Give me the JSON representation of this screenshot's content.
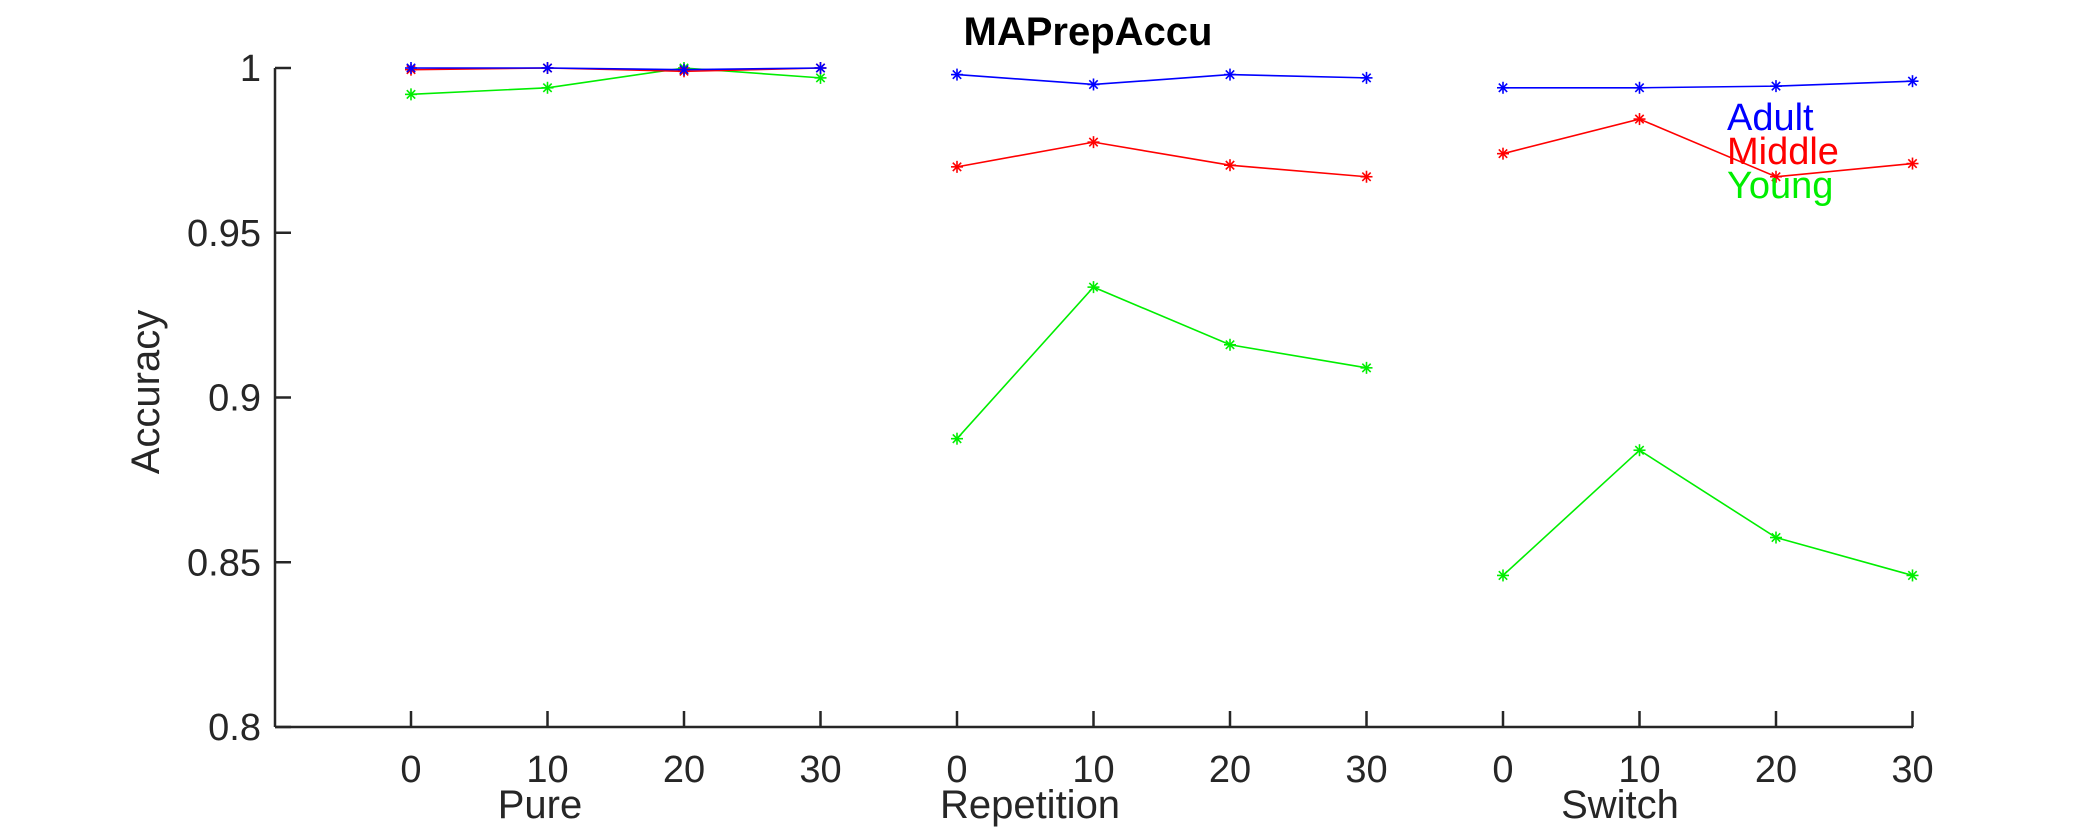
{
  "chart_data": {
    "type": "line",
    "title": "MAPrepAccu",
    "ylabel": "Accuracy",
    "xlabel": "",
    "ylim": [
      0.8,
      1.0
    ],
    "yticks": [
      0.8,
      0.85,
      0.9,
      0.95,
      1.0
    ],
    "ytick_labels": [
      "0.8",
      "0.85",
      "0.9",
      "0.95",
      "1"
    ],
    "groups": [
      "Pure",
      "Repetition",
      "Switch"
    ],
    "x": [
      0,
      10,
      20,
      30
    ],
    "xtick_labels": [
      "0",
      "10",
      "20",
      "30"
    ],
    "grid": false,
    "legend_position": "inside-right",
    "series": [
      {
        "name": "Adult",
        "color": "#0000ff",
        "values": [
          [
            1.0,
            1.0,
            0.9995,
            1.0
          ],
          [
            0.998,
            0.995,
            0.998,
            0.997
          ],
          [
            0.994,
            0.994,
            0.9945,
            0.996
          ]
        ]
      },
      {
        "name": "Middle",
        "color": "#ff0000",
        "values": [
          [
            0.9995,
            1.0,
            0.999,
            1.0
          ],
          [
            0.97,
            0.9775,
            0.9705,
            0.967
          ],
          [
            0.974,
            0.9845,
            0.967,
            0.971
          ]
        ]
      },
      {
        "name": "Young",
        "color": "#00ee00",
        "values": [
          [
            0.992,
            0.994,
            1.0,
            0.997
          ],
          [
            0.8875,
            0.9335,
            0.916,
            0.909
          ],
          [
            0.846,
            0.884,
            0.8575,
            0.846
          ]
        ]
      }
    ]
  }
}
